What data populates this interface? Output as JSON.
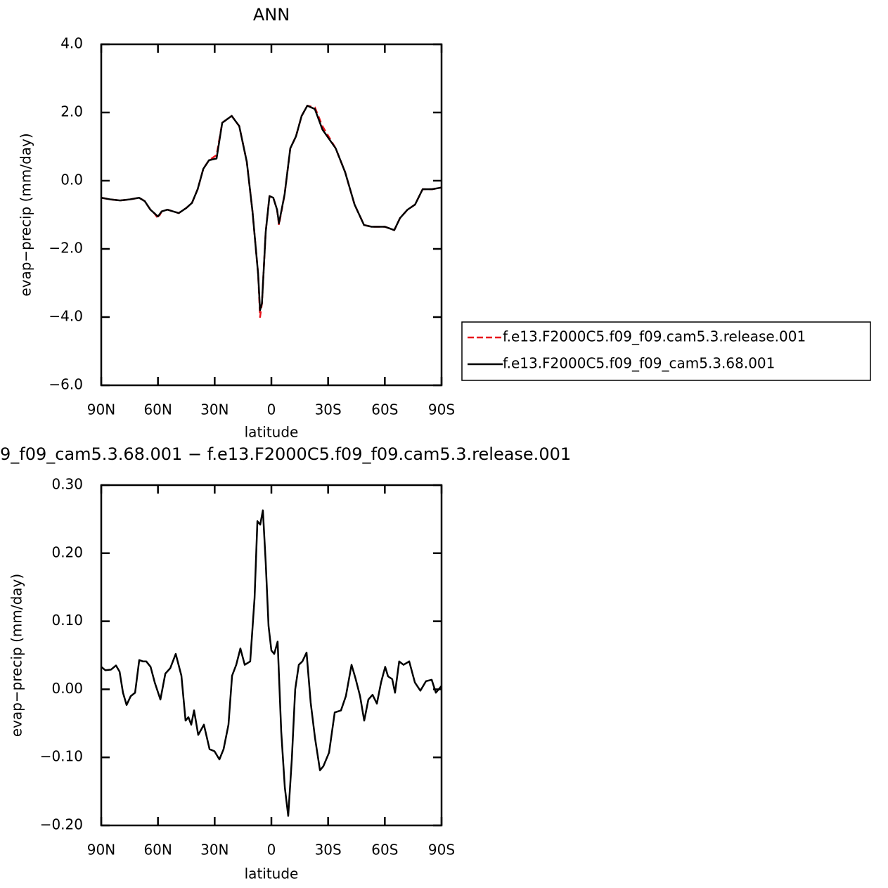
{
  "chart_data": [
    {
      "type": "line",
      "title": "ANN",
      "xlabel": "latitude",
      "ylabel": "evap−precip (mm/day)",
      "x": [
        90,
        85,
        80,
        75,
        70,
        67,
        64,
        62,
        60,
        58,
        55,
        52,
        49,
        45,
        42,
        39,
        36,
        33,
        29,
        26,
        21,
        17,
        13,
        10,
        7,
        6,
        5,
        3,
        1,
        -1,
        -3,
        -4,
        -7,
        -10,
        -13,
        -16,
        -19,
        -23,
        -27,
        -34,
        -39,
        -44,
        -49,
        -53,
        -60,
        -65,
        -68,
        -72,
        -76,
        -80,
        -85,
        -90
      ],
      "series": [
        {
          "name": "f.e13.F2000C5.f09_f09.cam5.3.release.001",
          "color": "#e8141c",
          "dashed": true,
          "values": [
            -0.5,
            -0.55,
            -0.58,
            -0.55,
            -0.5,
            -0.6,
            -0.85,
            -0.95,
            -1.1,
            -0.9,
            -0.85,
            -0.9,
            -0.95,
            -0.8,
            -0.65,
            -0.25,
            0.35,
            0.6,
            0.75,
            1.7,
            1.9,
            1.6,
            0.55,
            -0.9,
            -2.75,
            -4.0,
            -3.6,
            -1.5,
            -0.45,
            -0.5,
            -0.85,
            -1.3,
            -0.4,
            0.95,
            1.3,
            1.9,
            2.2,
            2.15,
            1.6,
            0.95,
            0.25,
            -0.7,
            -1.3,
            -1.35,
            -1.35,
            -1.45,
            -1.1,
            -0.85,
            -0.7,
            -0.25,
            -0.25,
            -0.2
          ]
        },
        {
          "name": "f.e13.F2000C5.f09_f09_cam5.3.68.001",
          "color": "#000000",
          "dashed": false,
          "values": [
            -0.5,
            -0.55,
            -0.58,
            -0.55,
            -0.5,
            -0.6,
            -0.85,
            -0.95,
            -1.05,
            -0.9,
            -0.85,
            -0.9,
            -0.95,
            -0.8,
            -0.65,
            -0.25,
            0.35,
            0.6,
            0.65,
            1.7,
            1.9,
            1.6,
            0.55,
            -0.9,
            -2.75,
            -3.8,
            -3.6,
            -1.5,
            -0.45,
            -0.5,
            -0.85,
            -1.25,
            -0.4,
            0.95,
            1.3,
            1.9,
            2.2,
            2.1,
            1.5,
            0.95,
            0.25,
            -0.7,
            -1.3,
            -1.35,
            -1.35,
            -1.45,
            -1.1,
            -0.85,
            -0.7,
            -0.25,
            -0.25,
            -0.2
          ]
        }
      ],
      "xlim": [
        90,
        -90
      ],
      "xticks": [
        {
          "value": 90,
          "label": "90N"
        },
        {
          "value": 60,
          "label": "60N"
        },
        {
          "value": 30,
          "label": "30N"
        },
        0,
        {
          "value": -30,
          "label": "30S"
        },
        {
          "value": -60,
          "label": "60S"
        },
        {
          "value": -90,
          "label": "90S"
        }
      ],
      "ylim": [
        -6,
        4
      ],
      "yticks": [
        {
          "value": -6,
          "label": "−6.0"
        },
        {
          "value": -4,
          "label": "−4.0"
        },
        {
          "value": -2,
          "label": "−2.0"
        },
        {
          "value": 0,
          "label": "0.0"
        },
        {
          "value": 2,
          "label": "2.0"
        },
        {
          "value": 4,
          "label": "4.0"
        }
      ],
      "legend": "outside right"
    },
    {
      "type": "line",
      "title": "9_f09_cam5.3.68.001 − f.e13.F2000C5.f09_f09.cam5.3.release.001",
      "xlabel": "latitude",
      "ylabel": "evap−precip (mm/day)",
      "x": [
        90,
        87.8,
        84.8,
        82.2,
        80.3,
        78.5,
        76.6,
        74.4,
        72.1,
        69.9,
        68,
        66.2,
        63.9,
        61.7,
        58.7,
        56.1,
        53.5,
        50.6,
        47.6,
        45.4,
        43.9,
        42.4,
        40.9,
        38.7,
        35.7,
        32.7,
        30.1,
        27.5,
        25.3,
        22.7,
        20.8,
        18.6,
        16.4,
        14.1,
        11.2,
        8.9,
        7.4,
        5.9,
        4.5,
        3.0,
        1.5,
        0,
        -1.5,
        -3.3,
        -5.2,
        -7.1,
        -8.9,
        -10.8,
        -12.6,
        -14.5,
        -16.4,
        -18.6,
        -20.8,
        -23.1,
        -25.7,
        -27.5,
        -30.5,
        -33.5,
        -36.8,
        -39.4,
        -42.4,
        -44.6,
        -46.9,
        -49.1,
        -51.3,
        -53.5,
        -55.8,
        -58,
        -60.2,
        -61.7,
        -63.9,
        -65.4,
        -67.6,
        -69.9,
        -72.9,
        -75.9,
        -78.8,
        -81.8,
        -84.8,
        -87,
        -90
      ],
      "values": [
        0.033,
        0.028,
        0.029,
        0.035,
        0.026,
        -0.005,
        -0.023,
        -0.01,
        -0.005,
        0.043,
        0.041,
        0.041,
        0.033,
        0.01,
        -0.015,
        0.023,
        0.031,
        0.052,
        0.02,
        -0.046,
        -0.041,
        -0.052,
        -0.031,
        -0.067,
        -0.052,
        -0.088,
        -0.091,
        -0.103,
        -0.088,
        -0.052,
        0.02,
        0.036,
        0.06,
        0.036,
        0.041,
        0.134,
        0.247,
        0.242,
        0.263,
        0.186,
        0.093,
        0.057,
        0.052,
        0.07,
        -0.062,
        -0.144,
        -0.186,
        -0.103,
        0,
        0.036,
        0.041,
        0.054,
        -0.02,
        -0.072,
        -0.119,
        -0.113,
        -0.093,
        -0.034,
        -0.031,
        -0.01,
        0.036,
        0.015,
        -0.01,
        -0.046,
        -0.015,
        -0.008,
        -0.021,
        0.01,
        0.033,
        0.019,
        0.015,
        -0.005,
        0.041,
        0.036,
        0.041,
        0.01,
        -0.002,
        0.012,
        0.014,
        -0.005,
        0.005
      ],
      "color": "#000000",
      "xlim": [
        90,
        -90
      ],
      "xticks": [
        {
          "value": 90,
          "label": "90N"
        },
        {
          "value": 60,
          "label": "60N"
        },
        {
          "value": 30,
          "label": "30N"
        },
        0,
        {
          "value": -30,
          "label": "30S"
        },
        {
          "value": -60,
          "label": "60S"
        },
        {
          "value": -90,
          "label": "90S"
        }
      ],
      "ylim": [
        -0.2,
        0.3
      ],
      "yticks": [
        {
          "value": -0.2,
          "label": "−0.20"
        },
        {
          "value": -0.1,
          "label": "−0.10"
        },
        {
          "value": 0,
          "label": "0.00"
        },
        {
          "value": 0.1,
          "label": "0.10"
        },
        {
          "value": 0.2,
          "label": "0.20"
        },
        {
          "value": 0.3,
          "label": "0.30"
        }
      ]
    }
  ]
}
